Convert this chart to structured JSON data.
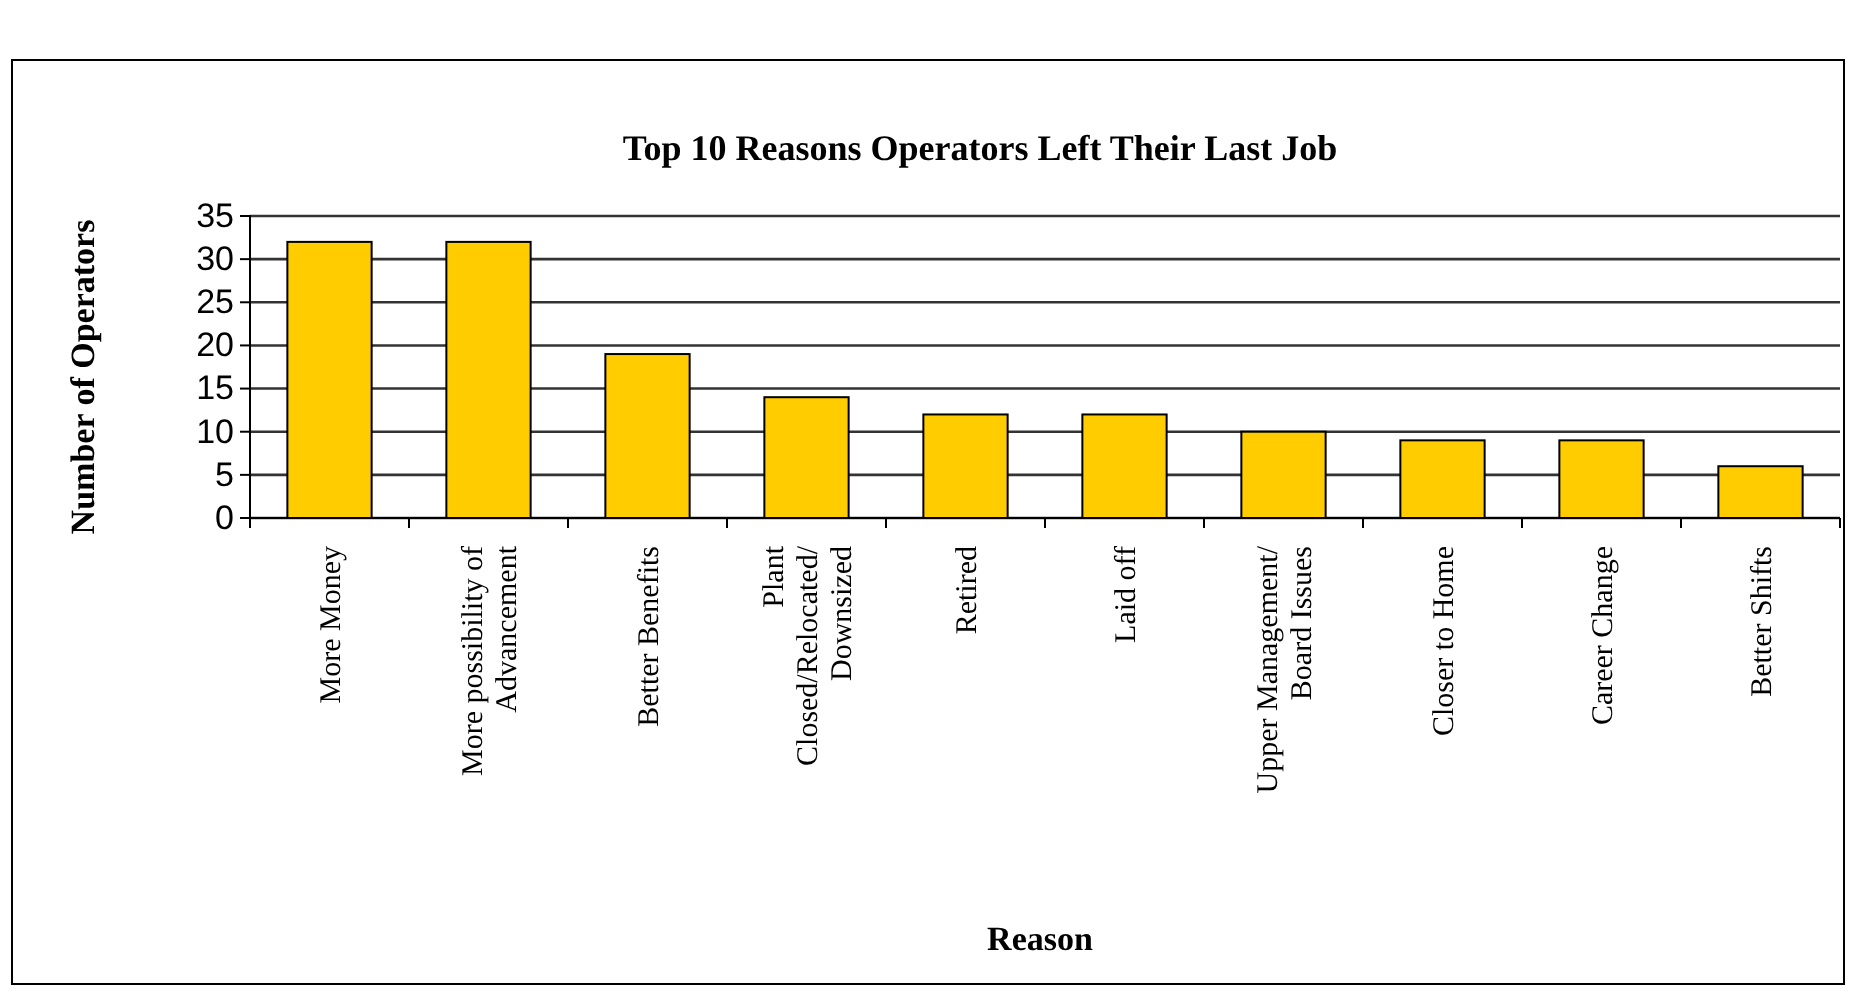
{
  "chart_data": {
    "type": "bar",
    "title": "Top 10 Reasons Operators Left Their Last Job",
    "xlabel": "Reason",
    "ylabel": "Number of Operators",
    "categories": [
      "More Money",
      "More possibility of Advancement",
      "Better Benefits",
      "Plant Closed/Relocated/ Downsized",
      "Retired",
      "Laid off",
      "Upper Management/ Board Issues",
      "Closer to Home",
      "Career Change",
      "Better Shifts"
    ],
    "values": [
      32,
      32,
      19,
      14,
      12,
      12,
      10,
      9,
      9,
      6
    ],
    "color": "#ffcc00",
    "ylim": [
      0,
      35
    ],
    "yticks": [
      0,
      5,
      10,
      15,
      20,
      25,
      30,
      35
    ],
    "grid": "y"
  }
}
